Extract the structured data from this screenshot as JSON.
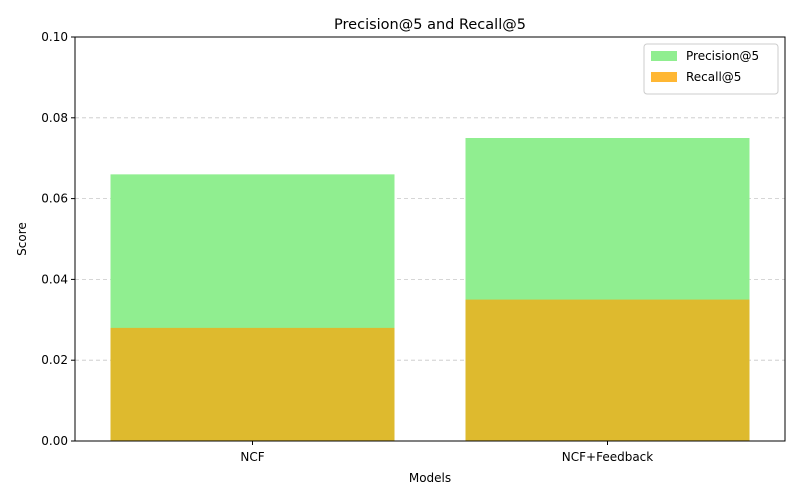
{
  "chart_data": {
    "type": "bar",
    "title": "Precision@5 and Recall@5",
    "xlabel": "Models",
    "ylabel": "Score",
    "categories": [
      "NCF",
      "NCF+Feedback"
    ],
    "series": [
      {
        "name": "Precision@5",
        "values": [
          0.066,
          0.075
        ],
        "color": "#90ee90"
      },
      {
        "name": "Recall@5",
        "values": [
          0.028,
          0.035
        ],
        "color": "#ffb733"
      }
    ],
    "overlap_color": "#deba2e",
    "ylim": [
      0,
      0.1
    ],
    "yticks": [
      "0.00",
      "0.02",
      "0.04",
      "0.06",
      "0.08",
      "0.10"
    ],
    "ytick_values": [
      0,
      0.02,
      0.04,
      0.06,
      0.08,
      0.1
    ],
    "grid": "y-dashed",
    "legend_position": "top-right"
  }
}
